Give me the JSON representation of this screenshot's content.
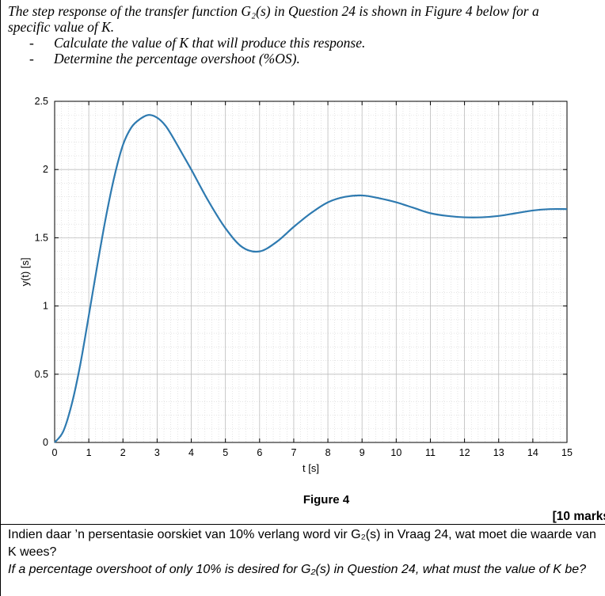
{
  "question_top": {
    "line1": "The step response of the transfer function G₂(s) in Question 24 is shown in Figure 4 below for a",
    "line2": "specific value of K.",
    "bullets": [
      "Calculate the value of K that will produce this response.",
      "Determine the percentage overshoot (%OS)."
    ],
    "bullet_marker": "-"
  },
  "figure_caption": "Figure 4",
  "marks": "[10 marks",
  "question_bottom": {
    "afrikaans": "Indien daar ’n persentasie oorskiet van 10% verlang word vir G₂(s) in Vraag 24, wat moet die waarde van K wees?",
    "english": "If a percentage overshoot of only 10% is desired for G₂(s) in Question 24, what must the value of K be?"
  },
  "chart_data": {
    "type": "line",
    "xlabel": "t [s]",
    "ylabel": "y(t) [s]",
    "xlim": [
      0,
      15
    ],
    "ylim": [
      0,
      2.5
    ],
    "xticks": [
      0,
      1,
      2,
      3,
      4,
      5,
      6,
      7,
      8,
      9,
      10,
      11,
      12,
      13,
      14,
      15
    ],
    "yticks": [
      0,
      0.5,
      1,
      1.5,
      2,
      2.5
    ],
    "ytick_labels": [
      "0",
      "0.5",
      "1",
      "1.5",
      "2",
      "2.5"
    ],
    "grid": true,
    "minor_grid": true,
    "line_color": "#2e7ab0",
    "series": [
      {
        "x": [
          0,
          0.25,
          0.5,
          0.75,
          1.0,
          1.25,
          1.5,
          1.75,
          2.0,
          2.25,
          2.5,
          2.75,
          3.0,
          3.25,
          3.5,
          3.75,
          4.0,
          4.5,
          5.0,
          5.5,
          6.0,
          6.5,
          7.0,
          7.5,
          8.0,
          8.5,
          9.0,
          9.5,
          10.0,
          10.5,
          11.0,
          11.5,
          12.0,
          12.5,
          13.0,
          13.5,
          14.0,
          14.5,
          15.0
        ],
        "y": [
          0,
          0.08,
          0.28,
          0.57,
          0.93,
          1.3,
          1.65,
          1.95,
          2.18,
          2.31,
          2.37,
          2.4,
          2.38,
          2.32,
          2.22,
          2.11,
          2.0,
          1.77,
          1.57,
          1.43,
          1.4,
          1.47,
          1.58,
          1.68,
          1.76,
          1.8,
          1.81,
          1.79,
          1.76,
          1.72,
          1.68,
          1.66,
          1.65,
          1.65,
          1.66,
          1.68,
          1.7,
          1.71,
          1.71
        ]
      }
    ]
  }
}
